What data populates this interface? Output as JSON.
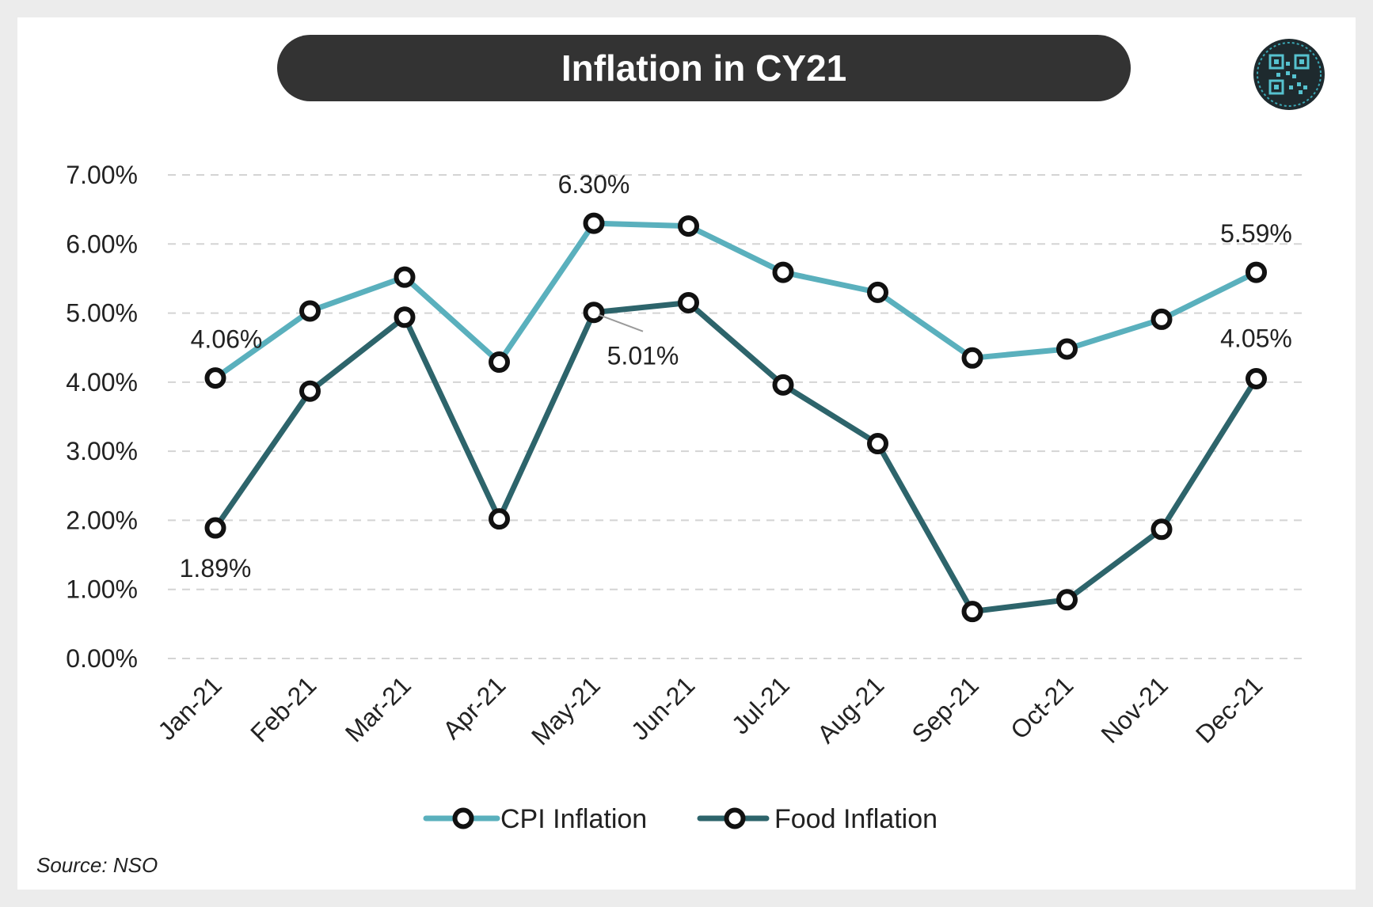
{
  "header": {
    "title": "Inflation in CY21"
  },
  "footer": {
    "source": "Source: NSO"
  },
  "colors": {
    "cpi": "#5ab0bd",
    "food": "#2d646b",
    "title_bg": "#333333",
    "grid": "#d4d4d4"
  },
  "logo": {
    "icon": "qr-code-logo-icon"
  },
  "chart_data": {
    "type": "line",
    "title": "Inflation in CY21",
    "xlabel": "",
    "ylabel": "",
    "categories": [
      "Jan-21",
      "Feb-21",
      "Mar-21",
      "Apr-21",
      "May-21",
      "Jun-21",
      "Jul-21",
      "Aug-21",
      "Sep-21",
      "Oct-21",
      "Nov-21",
      "Dec-21"
    ],
    "y_ticks": [
      "0.00%",
      "1.00%",
      "2.00%",
      "3.00%",
      "4.00%",
      "5.00%",
      "6.00%",
      "7.00%"
    ],
    "ylim": [
      0,
      7
    ],
    "grid": true,
    "legend_position": "bottom",
    "series": [
      {
        "name": "CPI Inflation",
        "values": [
          4.06,
          5.03,
          5.52,
          4.29,
          6.3,
          6.26,
          5.59,
          5.3,
          4.35,
          4.48,
          4.91,
          5.59
        ],
        "labels": [
          {
            "index": 0,
            "text": "4.06%"
          },
          {
            "index": 4,
            "text": "6.30%"
          },
          {
            "index": 11,
            "text": "5.59%"
          }
        ]
      },
      {
        "name": "Food Inflation",
        "values": [
          1.89,
          3.87,
          4.94,
          2.02,
          5.01,
          5.15,
          3.96,
          3.11,
          0.68,
          0.85,
          1.87,
          4.05
        ],
        "labels": [
          {
            "index": 0,
            "text": "1.89%"
          },
          {
            "index": 4,
            "text": "5.01%"
          },
          {
            "index": 11,
            "text": "4.05%"
          }
        ]
      }
    ]
  }
}
